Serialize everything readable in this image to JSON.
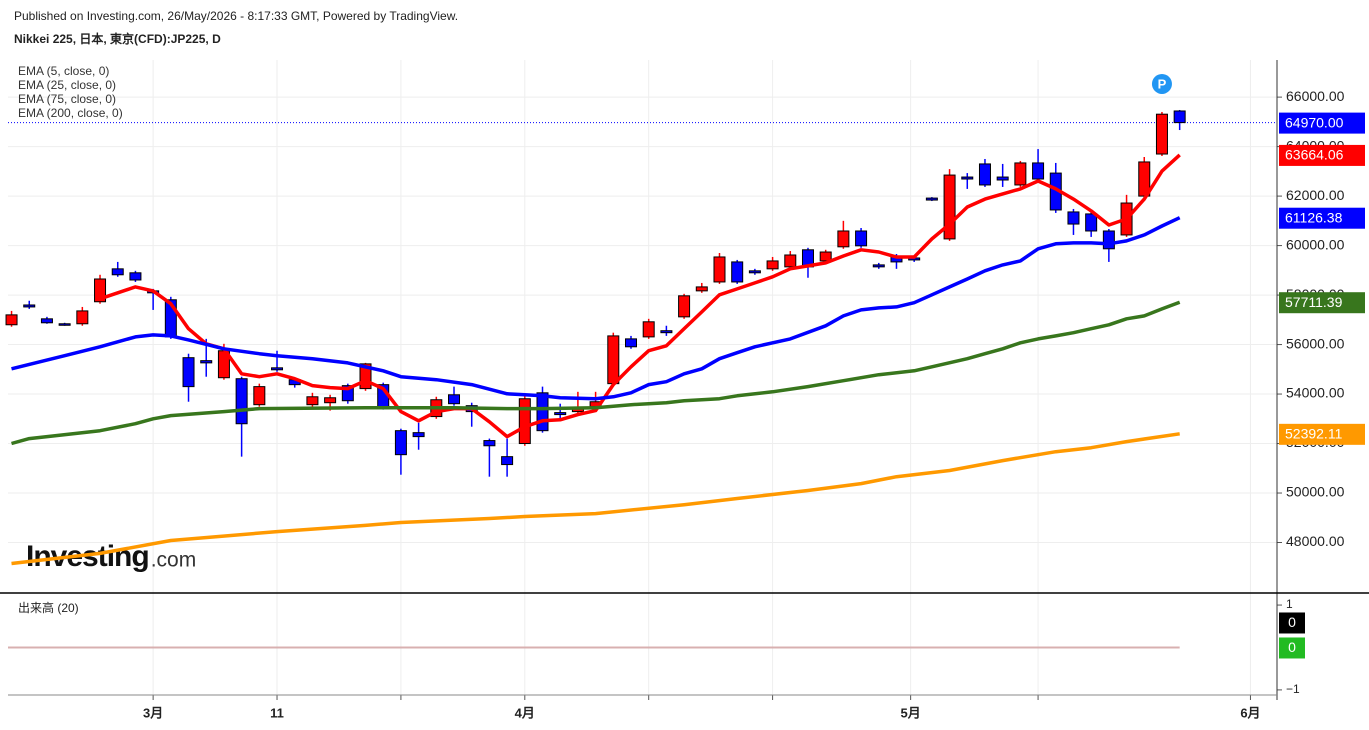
{
  "chart_data": {
    "type": "candlestick",
    "subtitle": "Published on Investing.com, 26/May/2026 - 8:17:33 GMT, Powered by TradingView.",
    "title": "Nikkei 225, 日本, 東京(CFD):JP225, D",
    "logo": "Investing",
    "logo_suffix": ".com",
    "marker": "P",
    "marker_color": "#2196f3",
    "up_color": "#ff0000",
    "down_color": "#0000ff",
    "grid": true,
    "xlim": [
      -0.2,
      71.5
    ],
    "xticks": [
      {
        "value": 8,
        "label": "3月"
      },
      {
        "value": 15,
        "label": "11"
      },
      {
        "value": 22,
        "label": null
      },
      {
        "value": 29,
        "label": "4月"
      },
      {
        "value": 36,
        "label": null
      },
      {
        "value": 43,
        "label": null
      },
      {
        "value": 50.8,
        "label": "5月"
      },
      {
        "value": 58,
        "label": null
      },
      {
        "value": 70,
        "label": "6月"
      }
    ],
    "ylim": [
      46000,
      67500
    ],
    "yticks": [
      {
        "value": 48000,
        "label": "48000.00"
      },
      {
        "value": 50000,
        "label": "50000.00"
      },
      {
        "value": 52000,
        "label": "52000.00"
      },
      {
        "value": 54000,
        "label": "54000.00"
      },
      {
        "value": 56000,
        "label": "56000.00"
      },
      {
        "value": 58000,
        "label": "58000.00"
      },
      {
        "value": 60000,
        "label": "60000.00"
      },
      {
        "value": 62000,
        "label": "62000.00"
      },
      {
        "value": 64000,
        "label": "64000.00"
      },
      {
        "value": 66000,
        "label": "66000.00"
      }
    ],
    "open": [
      56800,
      57600,
      57040,
      56840,
      56840,
      57730,
      59060,
      58900,
      58170,
      57810,
      55470,
      55350,
      54660,
      54620,
      53570,
      55060,
      54580,
      53570,
      53650,
      54340,
      54220,
      54380,
      52520,
      52440,
      53090,
      53970,
      53530,
      52120,
      51470,
      52000,
      54050,
      53250,
      53290,
      53490,
      54420,
      56230,
      56310,
      56560,
      57120,
      58170,
      58530,
      59340,
      58980,
      59060,
      59140,
      59830,
      59380,
      59950,
      60590,
      59220,
      59540,
      59500,
      61920,
      60270,
      62770,
      63300,
      62770,
      62450,
      63340,
      62930,
      61360,
      61280,
      60590,
      60430,
      62000,
      63700,
      65440
    ],
    "high": [
      57360,
      57770,
      57120,
      56880,
      57520,
      58820,
      59340,
      58980,
      58250,
      57930,
      55630,
      56230,
      56030,
      54700,
      54420,
      55750,
      54660,
      54050,
      53970,
      54420,
      55260,
      54460,
      52600,
      52840,
      53890,
      54300,
      53650,
      52200,
      52200,
      53970,
      54300,
      53610,
      54090,
      54090,
      56480,
      56350,
      57040,
      56760,
      58050,
      58490,
      59700,
      59420,
      59060,
      59540,
      59780,
      59910,
      59830,
      61000,
      60710,
      59300,
      59660,
      59580,
      61960,
      63090,
      62930,
      63500,
      63300,
      63420,
      63900,
      63340,
      61480,
      61400,
      60670,
      62050,
      63580,
      65400,
      65480
    ],
    "low": [
      56720,
      57440,
      56840,
      56760,
      56760,
      57650,
      58740,
      58530,
      57400,
      56230,
      53690,
      54700,
      54580,
      51470,
      53490,
      54900,
      54260,
      53410,
      53330,
      53610,
      54130,
      53370,
      50740,
      51750,
      53000,
      53530,
      52680,
      50660,
      50660,
      51910,
      52440,
      53000,
      53210,
      53410,
      54340,
      55830,
      56230,
      56350,
      57040,
      58090,
      58450,
      58450,
      58820,
      58980,
      59060,
      58700,
      59300,
      59870,
      59910,
      59060,
      59060,
      59340,
      61800,
      60190,
      62290,
      62370,
      62370,
      62370,
      62530,
      61320,
      60430,
      60350,
      59340,
      60350,
      61920,
      63620,
      64670
    ],
    "close": [
      57200,
      57520,
      56880,
      56800,
      57360,
      58650,
      58820,
      58610,
      58090,
      56310,
      54300,
      55260,
      55750,
      52800,
      54300,
      54980,
      54380,
      53890,
      53850,
      53730,
      55220,
      53450,
      51550,
      52280,
      53770,
      53610,
      53290,
      51910,
      51150,
      53810,
      52520,
      53170,
      53450,
      53690,
      56350,
      55910,
      56920,
      56480,
      57970,
      58330,
      59540,
      58530,
      58900,
      59380,
      59620,
      59140,
      59740,
      60590,
      59990,
      59140,
      59340,
      59420,
      61840,
      62850,
      62690,
      62450,
      62650,
      63340,
      62690,
      61440,
      60870,
      60590,
      59870,
      61720,
      63380,
      65310,
      64970
    ],
    "last_price": {
      "value": 64970,
      "label": "64970.00"
    },
    "last_price_color": "#0000ff",
    "lines": [
      {
        "name": "EMA (5, close, 0)",
        "color": "#ff0000",
        "x": [
          5,
          7,
          8,
          9,
          10,
          11,
          12,
          13,
          14,
          15,
          16,
          17,
          18,
          19,
          20,
          21,
          22,
          23,
          24,
          25,
          26,
          27,
          28,
          29,
          30,
          31,
          32,
          33,
          34,
          35,
          36,
          37,
          38,
          39,
          40,
          41,
          42,
          43,
          44,
          45,
          46,
          47,
          48,
          49,
          50,
          51,
          52,
          53,
          54,
          55,
          56,
          57,
          58,
          59,
          60,
          61,
          62,
          63,
          64,
          65,
          66
        ],
        "values": [
          57850,
          58330,
          58170,
          57650,
          56640,
          56030,
          55830,
          54820,
          54700,
          54820,
          54620,
          54340,
          54260,
          54220,
          54540,
          54220,
          53290,
          52920,
          53290,
          53410,
          53410,
          52880,
          52280,
          52680,
          52920,
          52960,
          53170,
          53330,
          54380,
          55100,
          55750,
          55950,
          56640,
          57320,
          58010,
          58250,
          58490,
          58740,
          59060,
          59180,
          59300,
          59580,
          59830,
          59740,
          59540,
          59540,
          60270,
          60870,
          61560,
          61880,
          62090,
          62290,
          62610,
          62290,
          61880,
          61400,
          60830,
          61080,
          61880,
          63010,
          63664.06
        ]
      },
      {
        "name": "EMA (25, close, 0)",
        "color": "#0000ff",
        "x": [
          0,
          3,
          5,
          7,
          8,
          9,
          10,
          12,
          14,
          15,
          17,
          19,
          21,
          22,
          24,
          26,
          28,
          29,
          30,
          31,
          33,
          34,
          35,
          36,
          37,
          38,
          39,
          40,
          41,
          42,
          44,
          46,
          47,
          48,
          49,
          50,
          51,
          52,
          53,
          54,
          55,
          56,
          57,
          58,
          59,
          60,
          61,
          62,
          63,
          64,
          65,
          66
        ],
        "values": [
          55020,
          55550,
          55910,
          56310,
          56390,
          56350,
          56190,
          55830,
          55630,
          55550,
          55430,
          55260,
          54940,
          54700,
          54580,
          54380,
          54010,
          53970,
          53930,
          53850,
          53810,
          53890,
          54050,
          54380,
          54500,
          54820,
          55020,
          55430,
          55670,
          55910,
          56230,
          56760,
          57160,
          57400,
          57480,
          57520,
          57690,
          58010,
          58330,
          58650,
          58980,
          59220,
          59380,
          59870,
          60070,
          60110,
          60110,
          60070,
          60190,
          60430,
          60790,
          61126.38
        ]
      },
      {
        "name": "EMA (75, close, 0)",
        "color": "#38761d",
        "x": [
          0,
          1,
          5,
          7,
          8,
          9,
          12,
          14,
          20,
          25,
          28,
          30,
          33,
          35,
          37,
          38,
          40,
          41,
          43,
          45,
          47,
          49,
          51,
          52,
          54,
          55,
          56,
          57,
          58,
          59,
          60,
          61,
          62,
          63,
          64,
          65,
          66
        ],
        "values": [
          52000,
          52200,
          52520,
          52800,
          53000,
          53130,
          53290,
          53410,
          53450,
          53450,
          53410,
          53410,
          53450,
          53570,
          53650,
          53730,
          53810,
          53930,
          54090,
          54300,
          54540,
          54780,
          54940,
          55100,
          55430,
          55630,
          55830,
          56070,
          56230,
          56350,
          56480,
          56640,
          56800,
          57040,
          57160,
          57440,
          57711.39
        ]
      },
      {
        "name": "EMA (200, close, 0)",
        "color": "#ff9900",
        "x": [
          0,
          5,
          9,
          15,
          20,
          22,
          27,
          29,
          33,
          38,
          41,
          45,
          48,
          50,
          53,
          56,
          59,
          61,
          63,
          66
        ],
        "values": [
          47150,
          47560,
          48080,
          48440,
          48690,
          48810,
          48970,
          49050,
          49170,
          49530,
          49780,
          50100,
          50380,
          50660,
          50910,
          51310,
          51670,
          51830,
          52080,
          52392.11
        ]
      }
    ],
    "volume_pane": {
      "title": "出来高 (20)",
      "ylim": [
        -1.12,
        1.19
      ],
      "yticks": [
        1,
        {
          "value": -1,
          "label": "−1"
        }
      ],
      "last_values": [
        0,
        0
      ],
      "colors": [
        "#000000",
        "#22bb22"
      ]
    }
  }
}
